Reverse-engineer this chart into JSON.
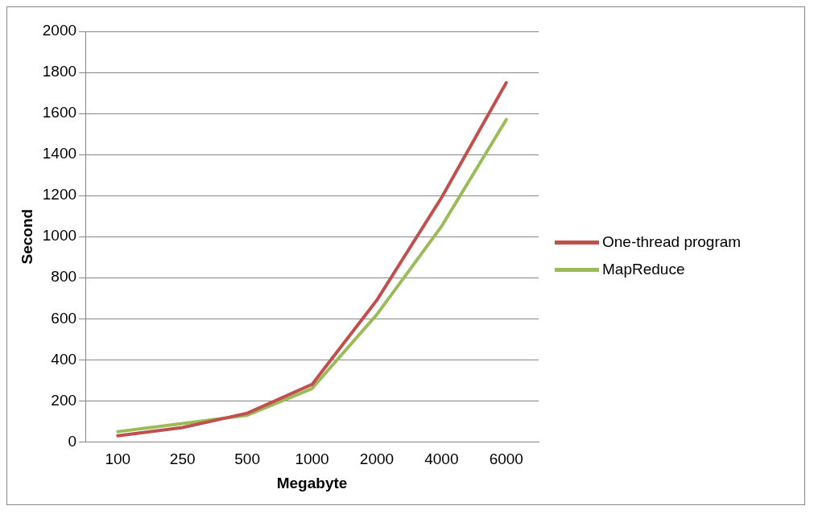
{
  "chart_data": {
    "type": "line",
    "xlabel": "Megabyte",
    "ylabel": "Second",
    "categories": [
      "100",
      "250",
      "500",
      "1000",
      "2000",
      "4000",
      "6000"
    ],
    "series": [
      {
        "name": "One-thread program",
        "color": "#c0504d",
        "values": [
          30,
          70,
          140,
          280,
          690,
          1190,
          1750
        ]
      },
      {
        "name": "MapReduce",
        "color": "#9bbb59",
        "values": [
          50,
          90,
          130,
          260,
          620,
          1050,
          1570
        ]
      }
    ],
    "ylim": [
      0,
      2000
    ],
    "yticks": [
      0,
      200,
      400,
      600,
      800,
      1000,
      1200,
      1400,
      1600,
      1800,
      2000
    ],
    "grid": "y",
    "legend": "right",
    "marker": "none",
    "line_style": "solid"
  }
}
